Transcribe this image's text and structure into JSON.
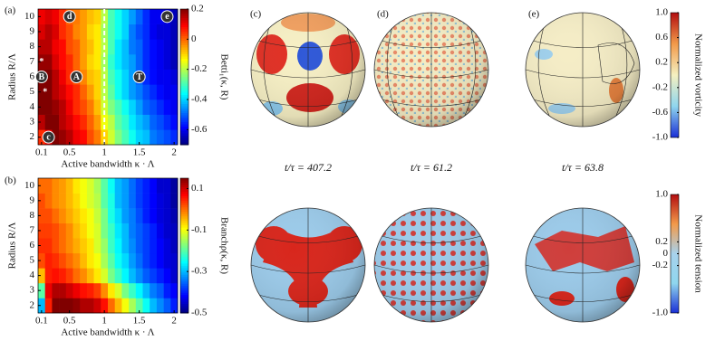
{
  "chart_data": [
    {
      "type": "heatmap",
      "panel": "(a)",
      "colorbar_label": "Betti₁(κ, R)",
      "xlabel": "Active bandwidth κ · Λ",
      "ylabel": "Radius R/Λ",
      "x": [
        0.1,
        0.2,
        0.3,
        0.4,
        0.5,
        0.6,
        0.7,
        0.8,
        0.9,
        1.0,
        1.1,
        1.2,
        1.3,
        1.4,
        1.5,
        1.6,
        1.7,
        1.8,
        1.9,
        2.0
      ],
      "y": [
        2,
        3,
        4,
        5,
        6,
        7,
        8,
        9,
        10
      ],
      "z": [
        [
          0.05,
          0.1,
          0.2,
          0.18,
          0.15,
          0.1,
          0.08,
          0.02,
          -0.02,
          -0.1,
          -0.18,
          -0.25,
          -0.3,
          -0.35,
          -0.4,
          -0.42,
          -0.48,
          -0.5,
          -0.52,
          -0.55
        ],
        [
          0.15,
          0.2,
          0.2,
          0.15,
          0.12,
          0.08,
          0.05,
          0.0,
          -0.05,
          -0.15,
          -0.2,
          -0.28,
          -0.32,
          -0.38,
          -0.42,
          -0.45,
          -0.5,
          -0.52,
          -0.55,
          -0.58
        ],
        [
          0.2,
          0.2,
          0.18,
          0.15,
          0.1,
          0.05,
          0.02,
          -0.02,
          -0.08,
          -0.18,
          -0.25,
          -0.3,
          -0.35,
          -0.4,
          -0.45,
          -0.5,
          -0.52,
          -0.55,
          -0.58,
          -0.6
        ],
        [
          0.2,
          0.2,
          0.15,
          0.12,
          0.08,
          0.05,
          0.0,
          -0.05,
          -0.1,
          -0.2,
          -0.28,
          -0.35,
          -0.4,
          -0.45,
          -0.48,
          -0.52,
          -0.55,
          -0.58,
          -0.6,
          -0.6
        ],
        [
          0.2,
          0.2,
          0.15,
          0.1,
          0.05,
          0.02,
          -0.03,
          -0.08,
          -0.1,
          -0.2,
          -0.3,
          -0.35,
          -0.4,
          -0.45,
          -0.5,
          -0.55,
          -0.58,
          -0.6,
          -0.6,
          -0.62
        ],
        [
          0.18,
          0.18,
          0.12,
          0.08,
          0.05,
          0.0,
          -0.05,
          -0.1,
          -0.12,
          -0.22,
          -0.32,
          -0.38,
          -0.42,
          -0.45,
          -0.5,
          -0.55,
          -0.58,
          -0.6,
          -0.62,
          -0.65
        ],
        [
          0.15,
          0.15,
          0.1,
          0.08,
          0.02,
          0.0,
          -0.05,
          -0.08,
          -0.12,
          -0.2,
          -0.3,
          -0.38,
          -0.42,
          -0.48,
          -0.5,
          -0.55,
          -0.58,
          -0.6,
          -0.62,
          -0.65
        ],
        [
          0.12,
          0.15,
          0.12,
          0.05,
          0.02,
          -0.03,
          -0.05,
          -0.1,
          -0.12,
          -0.22,
          -0.3,
          -0.35,
          -0.4,
          -0.48,
          -0.52,
          -0.55,
          -0.6,
          -0.62,
          -0.62,
          -0.65
        ],
        [
          0.1,
          0.12,
          0.1,
          0.05,
          0.0,
          -0.02,
          -0.05,
          -0.08,
          -0.1,
          -0.2,
          -0.3,
          -0.35,
          -0.4,
          -0.45,
          -0.5,
          -0.55,
          -0.6,
          -0.6,
          -0.62,
          -0.65
        ]
      ],
      "xlim": [
        0.05,
        2.05
      ],
      "ylim": [
        1.5,
        10.5
      ],
      "xticks": [
        0.1,
        0.5,
        1,
        1.5,
        2
      ],
      "yticks": [
        2,
        3,
        4,
        5,
        6,
        7,
        8,
        9,
        10
      ],
      "zlim": [
        -0.7,
        0.2
      ],
      "zticks": [
        0.2,
        0,
        -0.2,
        -0.4,
        -0.6
      ],
      "vlines": [
        1
      ],
      "annotations": [
        {
          "label": "d",
          "x": 0.5,
          "y": 10
        },
        {
          "label": "e",
          "x": 1.9,
          "y": 10
        },
        {
          "label": "B",
          "x": 0.1,
          "y": 6
        },
        {
          "label": "A",
          "x": 0.6,
          "y": 6
        },
        {
          "label": "T",
          "x": 1.5,
          "y": 6
        },
        {
          "label": "c",
          "x": 0.2,
          "y": 2
        },
        {
          "label": "*",
          "x": 0.1,
          "y": 7
        },
        {
          "label": "*",
          "x": 0.15,
          "y": 5
        }
      ]
    },
    {
      "type": "heatmap",
      "panel": "(b)",
      "colorbar_label": "Branchρ(κ, R)",
      "xlabel": "Active bandwidth κ · Λ",
      "ylabel": "Radius R/Λ",
      "x": [
        0.1,
        0.2,
        0.3,
        0.4,
        0.5,
        0.6,
        0.7,
        0.8,
        0.9,
        1.0,
        1.1,
        1.2,
        1.3,
        1.4,
        1.5,
        1.6,
        1.7,
        1.8,
        1.9,
        2.0
      ],
      "y": [
        2,
        3,
        4,
        5,
        6,
        7,
        8,
        9,
        10
      ],
      "z": [
        [
          -0.3,
          0.05,
          0.15,
          0.15,
          0.15,
          0.14,
          0.12,
          0.12,
          0.1,
          0.06,
          0.0,
          -0.05,
          -0.1,
          -0.15,
          -0.2,
          -0.25,
          -0.3,
          -0.33,
          -0.36,
          -0.4
        ],
        [
          -0.2,
          0.08,
          0.12,
          0.12,
          0.1,
          0.08,
          0.06,
          0.05,
          0.03,
          -0.02,
          -0.08,
          -0.12,
          -0.18,
          -0.22,
          -0.26,
          -0.3,
          -0.34,
          -0.36,
          -0.4,
          -0.42
        ],
        [
          -0.05,
          0.05,
          0.06,
          0.05,
          0.03,
          0.0,
          -0.02,
          -0.05,
          -0.08,
          -0.12,
          -0.18,
          -0.22,
          -0.26,
          -0.3,
          -0.33,
          -0.36,
          -0.38,
          -0.4,
          -0.42,
          -0.45
        ],
        [
          0.02,
          0.05,
          0.04,
          0.02,
          0.0,
          -0.02,
          -0.05,
          -0.08,
          -0.1,
          -0.15,
          -0.2,
          -0.25,
          -0.28,
          -0.32,
          -0.35,
          -0.38,
          -0.4,
          -0.42,
          -0.44,
          -0.45
        ],
        [
          0.04,
          0.04,
          0.02,
          0.0,
          -0.02,
          -0.04,
          -0.06,
          -0.08,
          -0.12,
          -0.16,
          -0.22,
          -0.26,
          -0.3,
          -0.33,
          -0.36,
          -0.38,
          -0.4,
          -0.42,
          -0.44,
          -0.46
        ],
        [
          0.03,
          0.03,
          0.02,
          0.0,
          -0.02,
          -0.05,
          -0.07,
          -0.1,
          -0.12,
          -0.18,
          -0.22,
          -0.27,
          -0.3,
          -0.34,
          -0.36,
          -0.38,
          -0.4,
          -0.43,
          -0.45,
          -0.46
        ],
        [
          0.02,
          0.02,
          0.0,
          -0.02,
          -0.04,
          -0.06,
          -0.08,
          -0.1,
          -0.13,
          -0.18,
          -0.24,
          -0.28,
          -0.32,
          -0.34,
          -0.37,
          -0.4,
          -0.42,
          -0.44,
          -0.45,
          -0.47
        ],
        [
          0.02,
          0.0,
          -0.02,
          -0.03,
          -0.05,
          -0.07,
          -0.1,
          -0.12,
          -0.14,
          -0.2,
          -0.24,
          -0.3,
          -0.32,
          -0.35,
          -0.38,
          -0.4,
          -0.42,
          -0.44,
          -0.45,
          -0.48
        ],
        [
          0.0,
          0.0,
          -0.02,
          -0.03,
          -0.05,
          -0.08,
          -0.1,
          -0.12,
          -0.15,
          -0.2,
          -0.25,
          -0.3,
          -0.32,
          -0.35,
          -0.38,
          -0.4,
          -0.42,
          -0.45,
          -0.45,
          -0.48
        ]
      ],
      "xlim": [
        0.05,
        2.05
      ],
      "ylim": [
        1.5,
        10.5
      ],
      "xticks": [
        0.1,
        0.5,
        1,
        1.5,
        2
      ],
      "yticks": [
        2,
        3,
        4,
        5,
        6,
        7,
        8,
        9,
        10
      ],
      "zlim": [
        -0.5,
        0.15
      ],
      "zticks": [
        0.1,
        -0.1,
        -0.3,
        -0.5
      ]
    },
    {
      "type": "colorbar",
      "label": "Normalized vorticity",
      "lim": [
        -1,
        1
      ],
      "ticks": [
        {
          "value": 1,
          "label": "1.0"
        },
        0.6,
        0.2,
        -0.2,
        -0.6,
        {
          "value": -1,
          "label": "-1.0"
        }
      ],
      "colors": [
        "#1a2fd6",
        "#8fd6ee",
        "#f5f0c0",
        "#f29a4a",
        "#b30d10"
      ]
    },
    {
      "type": "colorbar",
      "label": "Normalized tension",
      "lim": [
        -1,
        1
      ],
      "ticks": [
        {
          "value": 1,
          "label": "1.0"
        },
        0.2,
        0,
        -0.2,
        {
          "value": -1,
          "label": "-1.0"
        }
      ],
      "colors": [
        "#1a2fd6",
        "#8fd6ee",
        "#a8d2ec",
        "#f29a4a",
        "#b30d10"
      ]
    }
  ],
  "spheres": [
    {
      "panel": "(c)",
      "caption": "t/τ = 407.2"
    },
    {
      "panel": "(d)",
      "caption": "t/τ = 61.2"
    },
    {
      "panel": "(e)",
      "caption": "t/τ = 63.8"
    }
  ]
}
